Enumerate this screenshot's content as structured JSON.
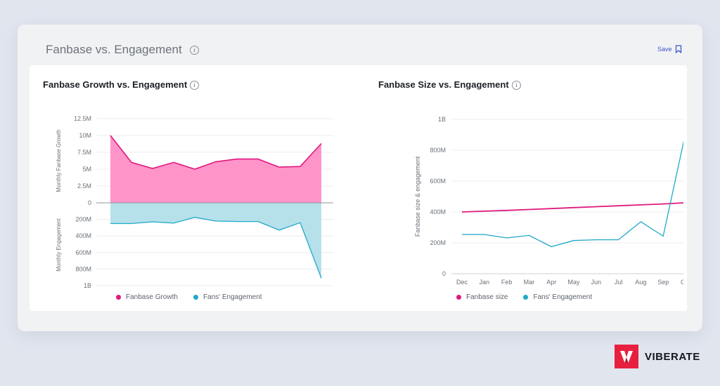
{
  "card": {
    "title": "Fanbase vs. Engagement",
    "save_label": "Save"
  },
  "panels": {
    "left": {
      "title": "Fanbase Growth vs. Engagement"
    },
    "right": {
      "title": "Fanbase Size vs. Engagement"
    }
  },
  "brand": {
    "name": "VIBERATE"
  },
  "colors": {
    "pink": "#e0197d",
    "pink_fill": "#ff94c9",
    "teal": "#1fa9c8",
    "teal_fill": "#b6e1ea",
    "accent": "#3c57c8",
    "brand": "#e8203f"
  },
  "chart_data": [
    {
      "type": "area",
      "title": "Fanbase Growth vs. Engagement",
      "ylabel_top": "Monthly Fanbase Growth",
      "ylabel_bottom": "Monthly Engagement",
      "yticks_top": [
        "12.5M",
        "10M",
        "7.5M",
        "5M",
        "2.5M",
        "0"
      ],
      "yticks_bottom": [
        "200M",
        "400M",
        "600M",
        "800M",
        "1B"
      ],
      "top_range": [
        0,
        12500000
      ],
      "bottom_range": [
        0,
        1000000000
      ],
      "series": [
        {
          "name": "Fanbase Growth",
          "axis": "top",
          "values": [
            10000000,
            6000000,
            5100000,
            6000000,
            5000000,
            6100000,
            6500000,
            6500000,
            5300000,
            5400000,
            8800000
          ]
        },
        {
          "name": "Fans' Engagement",
          "axis": "bottom",
          "values": [
            250000000,
            250000000,
            230000000,
            245000000,
            175000000,
            220000000,
            225000000,
            225000000,
            330000000,
            240000000,
            910000000
          ]
        }
      ]
    },
    {
      "type": "line",
      "title": "Fanbase Size vs. Engagement",
      "ylabel": "Fanbase size & engagement",
      "yticks": [
        "0",
        "200M",
        "400M",
        "600M",
        "800M",
        "1B"
      ],
      "ylim": [
        0,
        1000000000
      ],
      "categories": [
        "Dec",
        "Jan",
        "Feb",
        "Mar",
        "Apr",
        "May",
        "Jun",
        "Jul",
        "Aug",
        "Sep",
        "Oct"
      ],
      "series": [
        {
          "name": "Fanbase size",
          "values": [
            400000000,
            405000000,
            410000000,
            416000000,
            422000000,
            428000000,
            434000000,
            440000000,
            446000000,
            452000000,
            460000000
          ]
        },
        {
          "name": "Fans' Engagement",
          "values": [
            254000000,
            254000000,
            232000000,
            248000000,
            175000000,
            215000000,
            220000000,
            220000000,
            337000000,
            243000000,
            912000000
          ]
        }
      ]
    }
  ]
}
